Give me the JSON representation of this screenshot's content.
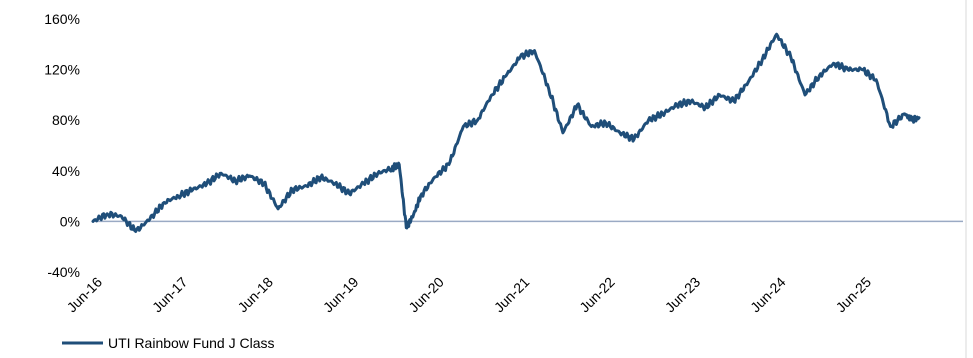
{
  "chart_data": {
    "type": "line",
    "title": "",
    "xlabel": "",
    "ylabel": "",
    "ylim": [
      -40,
      160
    ],
    "y_ticks": [
      "-40%",
      "0%",
      "40%",
      "80%",
      "120%",
      "160%"
    ],
    "y_tick_values": [
      -40,
      0,
      40,
      80,
      120,
      160
    ],
    "x_ticks": [
      "Jun-16",
      "Jun-17",
      "Jun-18",
      "Jun-19",
      "Jun-20",
      "Jun-21",
      "Jun-22",
      "Jun-23",
      "Jun-24",
      "Jun-25"
    ],
    "grid": false,
    "zero_line": true,
    "legend": "bottom-left",
    "series": [
      {
        "name": "UTI Rainbow Fund J Class",
        "color": "#1f4e79",
        "x": [
          "2016-06",
          "2016-08",
          "2016-10",
          "2016-12",
          "2017-02",
          "2017-04",
          "2017-06",
          "2017-08",
          "2017-10",
          "2017-12",
          "2018-02",
          "2018-04",
          "2018-06",
          "2018-08",
          "2018-10",
          "2018-12",
          "2019-02",
          "2019-04",
          "2019-06",
          "2019-08",
          "2019-10",
          "2019-12",
          "2020-01",
          "2020-02",
          "2020-03",
          "2020-04",
          "2020-06",
          "2020-08",
          "2020-10",
          "2020-12",
          "2021-02",
          "2021-04",
          "2021-06",
          "2021-08",
          "2021-10",
          "2021-12",
          "2022-02",
          "2022-04",
          "2022-06",
          "2022-08",
          "2022-10",
          "2022-12",
          "2023-02",
          "2023-04",
          "2023-06",
          "2023-08",
          "2023-10",
          "2023-12",
          "2024-02",
          "2024-04",
          "2024-06",
          "2024-08",
          "2024-10",
          "2024-12",
          "2025-02",
          "2025-04",
          "2025-06",
          "2025-08",
          "2025-10",
          "2025-12",
          "2026-01",
          "2026-02"
        ],
        "values": [
          0,
          6,
          4,
          -8,
          2,
          15,
          20,
          25,
          30,
          38,
          32,
          36,
          30,
          10,
          25,
          28,
          35,
          30,
          22,
          30,
          38,
          42,
          45,
          -5,
          5,
          20,
          35,
          45,
          75,
          80,
          100,
          115,
          130,
          135,
          105,
          70,
          92,
          75,
          78,
          70,
          65,
          80,
          85,
          92,
          95,
          90,
          100,
          95,
          110,
          128,
          148,
          130,
          100,
          115,
          125,
          120,
          120,
          112,
          75,
          85,
          80,
          82
        ]
      }
    ]
  }
}
